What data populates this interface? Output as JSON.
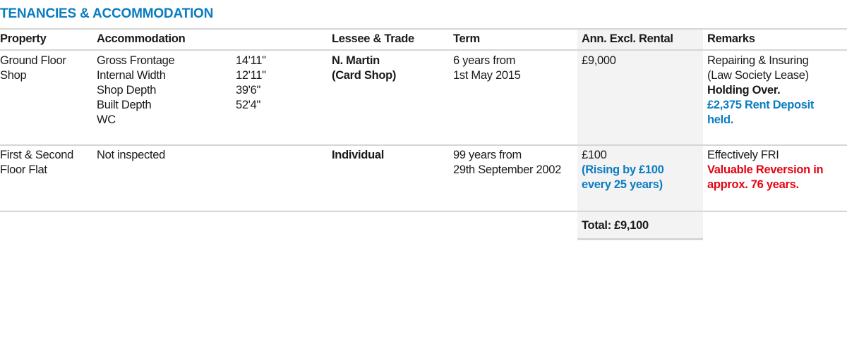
{
  "title": "TENANCIES & ACCOMMODATION",
  "headers": {
    "property": "Property",
    "accommodation": "Accommodation",
    "lessee": "Lessee & Trade",
    "term": "Term",
    "rental": "Ann. Excl. Rental",
    "remarks": "Remarks"
  },
  "rows": [
    {
      "property": [
        "Ground Floor",
        "Shop"
      ],
      "accommodation": [
        {
          "label": "Gross Frontage",
          "value": "14'11\""
        },
        {
          "label": "Internal Width",
          "value": "12'11\""
        },
        {
          "label": "Shop Depth",
          "value": "39'6\""
        },
        {
          "label": "Built Depth",
          "value": "52'4\""
        },
        {
          "label": "WC",
          "value": ""
        }
      ],
      "lessee": [
        "N. Martin",
        "(Card Shop)"
      ],
      "term": [
        "6 years from",
        "1st May 2015"
      ],
      "rental": "£9,000",
      "remarks": {
        "plain": [
          "Repairing & Insuring",
          "(Law Society Lease)"
        ],
        "bold": "Holding Over.",
        "highlight": [
          "£2,375 Rent Deposit",
          "held."
        ]
      }
    },
    {
      "property": [
        "First & Second",
        "Floor Flat"
      ],
      "accommodation_text": "Not inspected",
      "lessee": "Individual",
      "term": [
        "99 years from",
        "29th September 2002"
      ],
      "rental": "£100",
      "rental_note": [
        "(Rising by £100",
        "every 25 years)"
      ],
      "remarks": {
        "plain": "Effectively FRI",
        "alert": [
          "Valuable Reversion in",
          "approx. 76 years."
        ]
      }
    }
  ],
  "total": "Total: £9,100",
  "colors": {
    "accent_blue": "#0a7cc1",
    "alert_red": "#e30613",
    "shade": "#f3f3f3"
  }
}
